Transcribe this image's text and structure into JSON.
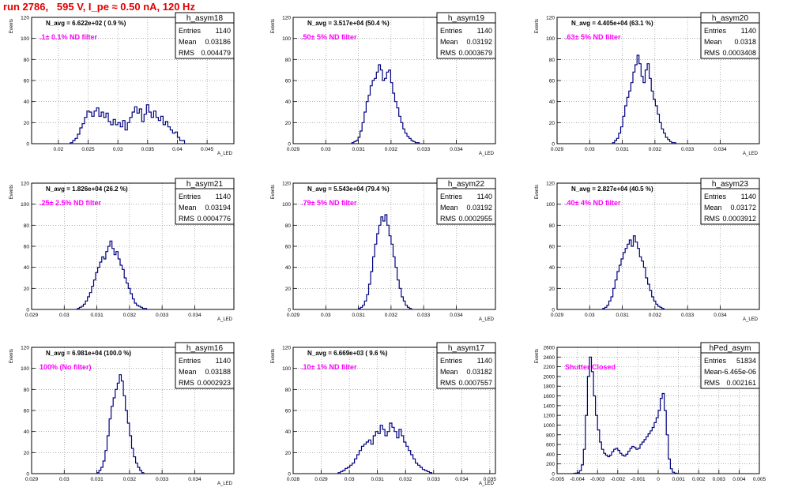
{
  "run_title": "run 2786,   595 V, I_pe ≈ 0.50 nA, 120 Hz",
  "colors": {
    "title": "#e00000",
    "histogram": "#000080",
    "annotation": "#ff00ff",
    "grid": "#808080"
  },
  "stat_labels": {
    "entries": "Entries",
    "mean": "Mean",
    "rms": "RMS"
  },
  "chart_data": [
    {
      "type": "histogram",
      "name": "h_asym18",
      "nl_text": "N_avg = 6.622e+02 ( 0.9 %)",
      "filter_text": ".1± 0.1% ND filter",
      "stats": {
        "entries": "1140",
        "mean": "0.03186",
        "rms": "0.004479"
      },
      "ylabel": "Events",
      "xlabel": "A_LED",
      "grid": true,
      "xlim": [
        0.0155,
        0.0495
      ],
      "ylim": [
        0,
        120
      ],
      "xticks": [
        "0.02",
        "0.025",
        "0.03",
        "0.035",
        "0.04",
        "0.045"
      ],
      "yticks": [
        "0",
        "20",
        "40",
        "60",
        "80",
        "100",
        "120"
      ],
      "bins": {
        "x0": 0.022,
        "dx": 0.0004,
        "counts": [
          1,
          3,
          5,
          9,
          15,
          19,
          25,
          31,
          30,
          26,
          31,
          34,
          26,
          30,
          25,
          29,
          21,
          18,
          23,
          18,
          20,
          16,
          22,
          13,
          20,
          25,
          30,
          35,
          29,
          33,
          21,
          28,
          37,
          30,
          25,
          31,
          25,
          22,
          26,
          18,
          21,
          16,
          13,
          10,
          11,
          6,
          3,
          3
        ]
      }
    },
    {
      "type": "histogram",
      "name": "h_asym19",
      "nl_text": "N_avg = 3.517e+04 (50.4 %)",
      "filter_text": ".50± 5% ND filter",
      "stats": {
        "entries": "1140",
        "mean": "0.03192",
        "rms": "0.0003679"
      },
      "ylabel": "Events",
      "xlabel": "A_LED",
      "grid": true,
      "xlim": [
        0.029,
        0.0352
      ],
      "ylim": [
        0,
        120
      ],
      "xticks": [
        "0.029",
        "0.03",
        "0.031",
        "0.032",
        "0.033",
        "0.034"
      ],
      "yticks": [
        "0",
        "20",
        "40",
        "60",
        "80",
        "100",
        "120"
      ],
      "bins": {
        "x0": 0.0308,
        "dx": 6.25e-05,
        "counts": [
          1,
          2,
          3,
          6,
          12,
          20,
          30,
          40,
          46,
          55,
          60,
          62,
          68,
          75,
          70,
          60,
          62,
          68,
          70,
          58,
          48,
          40,
          34,
          26,
          20,
          14,
          10,
          7,
          5,
          3,
          2,
          1,
          1
        ]
      }
    },
    {
      "type": "histogram",
      "name": "h_asym20",
      "nl_text": "N_avg = 4.405e+04 (63.1 %)",
      "filter_text": ".63± 5% ND filter",
      "stats": {
        "entries": "1140",
        "mean": "0.0318",
        "rms": "0.0003408"
      },
      "ylabel": "Events",
      "xlabel": "A_LED",
      "grid": true,
      "xlim": [
        0.029,
        0.0352
      ],
      "ylim": [
        0,
        120
      ],
      "xticks": [
        "0.029",
        "0.03",
        "0.031",
        "0.032",
        "0.033",
        "0.034"
      ],
      "yticks": [
        "0",
        "20",
        "40",
        "60",
        "80",
        "100",
        "120"
      ],
      "bins": {
        "x0": 0.0307,
        "dx": 6.25e-05,
        "counts": [
          1,
          3,
          5,
          10,
          16,
          26,
          36,
          44,
          50,
          58,
          68,
          75,
          84,
          76,
          64,
          58,
          70,
          76,
          62,
          50,
          42,
          36,
          28,
          20,
          14,
          10,
          6,
          4,
          2,
          1,
          1
        ]
      }
    },
    {
      "type": "histogram",
      "name": "h_asym21",
      "nl_text": "N_avg = 1.826e+04 (26.2 %)",
      "filter_text": ".25± 2.5% ND filter",
      "stats": {
        "entries": "1140",
        "mean": "0.03194",
        "rms": "0.0004776"
      },
      "ylabel": "Events",
      "xlabel": "A_LED",
      "grid": true,
      "xlim": [
        0.029,
        0.0352
      ],
      "ylim": [
        0,
        120
      ],
      "xticks": [
        "0.029",
        "0.03",
        "0.031",
        "0.032",
        "0.033",
        "0.034"
      ],
      "yticks": [
        "0",
        "20",
        "40",
        "60",
        "80",
        "100",
        "120"
      ],
      "bins": {
        "x0": 0.0304,
        "dx": 6.25e-05,
        "counts": [
          1,
          2,
          3,
          5,
          8,
          12,
          16,
          22,
          28,
          35,
          40,
          45,
          50,
          48,
          55,
          60,
          65,
          58,
          52,
          55,
          48,
          42,
          38,
          30,
          25,
          20,
          15,
          10,
          6,
          4,
          3,
          2,
          1,
          1
        ]
      }
    },
    {
      "type": "histogram",
      "name": "h_asym22",
      "nl_text": "N_avg = 5.543e+04 (79.4 %)",
      "filter_text": ".79± 5% ND filter",
      "stats": {
        "entries": "1140",
        "mean": "0.03192",
        "rms": "0.0002955"
      },
      "ylabel": "Events",
      "xlabel": "A_LED",
      "grid": true,
      "xlim": [
        0.029,
        0.0352
      ],
      "ylim": [
        0,
        120
      ],
      "xticks": [
        "0.029",
        "0.03",
        "0.031",
        "0.032",
        "0.033",
        "0.034"
      ],
      "yticks": [
        "0",
        "20",
        "40",
        "60",
        "80",
        "100",
        "120"
      ],
      "bins": {
        "x0": 0.031,
        "dx": 6.25e-05,
        "counts": [
          1,
          2,
          4,
          8,
          14,
          24,
          36,
          50,
          62,
          72,
          80,
          88,
          84,
          90,
          80,
          70,
          62,
          50,
          40,
          28,
          20,
          12,
          8,
          4,
          2,
          1
        ]
      }
    },
    {
      "type": "histogram",
      "name": "h_asym23",
      "nl_text": "N_avg = 2.827e+04 (40.5 %)",
      "filter_text": ".40± 4% ND filter",
      "stats": {
        "entries": "1140",
        "mean": "0.03172",
        "rms": "0.0003912"
      },
      "ylabel": "Events",
      "xlabel": "A_LED",
      "grid": true,
      "xlim": [
        0.029,
        0.0352
      ],
      "ylim": [
        0,
        120
      ],
      "xticks": [
        "0.029",
        "0.03",
        "0.031",
        "0.032",
        "0.033",
        "0.034"
      ],
      "yticks": [
        "0",
        "20",
        "40",
        "60",
        "80",
        "100",
        "120"
      ],
      "bins": {
        "x0": 0.0304,
        "dx": 6.25e-05,
        "counts": [
          1,
          2,
          4,
          8,
          12,
          20,
          28,
          36,
          42,
          48,
          54,
          58,
          62,
          66,
          60,
          70,
          64,
          58,
          50,
          46,
          40,
          30,
          24,
          18,
          12,
          8,
          5,
          3,
          2,
          1
        ]
      }
    },
    {
      "type": "histogram",
      "name": "h_asym16",
      "nl_text": "N_avg = 6.981e+04 (100.0 %)",
      "filter_text": "100% (No filter)",
      "stats": {
        "entries": "1140",
        "mean": "0.03188",
        "rms": "0.0002923"
      },
      "ylabel": "Events",
      "xlabel": "A_LED",
      "grid": true,
      "xlim": [
        0.029,
        0.0352
      ],
      "ylim": [
        0,
        120
      ],
      "xticks": [
        "0.029",
        "0.03",
        "0.031",
        "0.032",
        "0.033",
        "0.034"
      ],
      "yticks": [
        "0",
        "20",
        "40",
        "60",
        "80",
        "100",
        "120"
      ],
      "bins": {
        "x0": 0.031,
        "dx": 6.25e-05,
        "counts": [
          1,
          3,
          6,
          12,
          22,
          36,
          52,
          64,
          72,
          80,
          86,
          94,
          88,
          74,
          60,
          48,
          36,
          24,
          16,
          10,
          6,
          3,
          1
        ]
      }
    },
    {
      "type": "histogram",
      "name": "h_asym17",
      "nl_text": "N_avg = 6.669e+03 ( 9.6 %)",
      "filter_text": ".10± 1% ND filter",
      "stats": {
        "entries": "1140",
        "mean": "0.03182",
        "rms": "0.0007557"
      },
      "ylabel": "Events",
      "xlabel": "A_LED",
      "grid": true,
      "xlim": [
        0.028,
        0.0352
      ],
      "ylim": [
        0,
        120
      ],
      "xticks": [
        "0.028",
        "0.029",
        "0.03",
        "0.031",
        "0.032",
        "0.033",
        "0.034",
        "0.035"
      ],
      "yticks": [
        "0",
        "20",
        "40",
        "60",
        "80",
        "100",
        "120"
      ],
      "bins": {
        "x0": 0.0296,
        "dx": 8.33e-05,
        "counts": [
          1,
          2,
          3,
          5,
          6,
          8,
          10,
          14,
          18,
          22,
          26,
          28,
          30,
          32,
          28,
          36,
          40,
          38,
          46,
          42,
          36,
          40,
          48,
          44,
          40,
          34,
          42,
          36,
          30,
          26,
          22,
          18,
          14,
          10,
          8,
          6,
          4,
          3,
          2,
          1
        ]
      }
    },
    {
      "type": "histogram",
      "name": "hPed_asym",
      "nl_text": "",
      "filter_text": "Shutter Closed",
      "stats": {
        "entries": "51834",
        "mean": "-6.465e-06",
        "rms": "0.002161"
      },
      "ylabel": "Events",
      "xlabel": "",
      "grid": true,
      "xlim": [
        -0.005,
        0.005
      ],
      "ylim": [
        0,
        2600
      ],
      "xticks": [
        "-0.005",
        "-0.004",
        "-0.003",
        "-0.002",
        "-0.001",
        "0",
        "0.001",
        "0.002",
        "0.003",
        "0.004",
        "0.005"
      ],
      "yticks": [
        "0",
        "200",
        "400",
        "600",
        "800",
        "1000",
        "1200",
        "1400",
        "1600",
        "1800",
        "2000",
        "2200",
        "2400",
        "2600"
      ],
      "bins": {
        "x0": -0.0042,
        "dx": 0.0001,
        "counts": [
          5,
          10,
          20,
          60,
          180,
          500,
          1200,
          2000,
          2400,
          2100,
          1600,
          1200,
          900,
          650,
          500,
          420,
          380,
          350,
          380,
          450,
          500,
          520,
          480,
          420,
          380,
          360,
          400,
          460,
          520,
          560,
          540,
          500,
          520,
          600,
          650,
          700,
          760,
          820,
          880,
          950,
          1050,
          1150,
          1300,
          1550,
          1650,
          1300,
          800,
          300,
          100,
          30,
          10,
          5
        ]
      }
    }
  ]
}
